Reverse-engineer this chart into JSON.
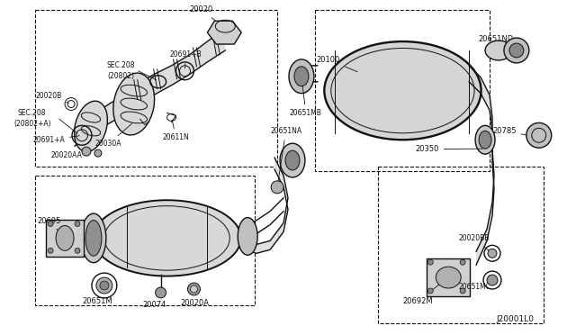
{
  "bg_color": "#ffffff",
  "line_color": "#111111",
  "text_color": "#111111",
  "diagram_id": "J20001L0",
  "figsize": [
    6.4,
    3.72
  ],
  "dpi": 100,
  "xlim": [
    0,
    640
  ],
  "ylim": [
    0,
    372
  ]
}
